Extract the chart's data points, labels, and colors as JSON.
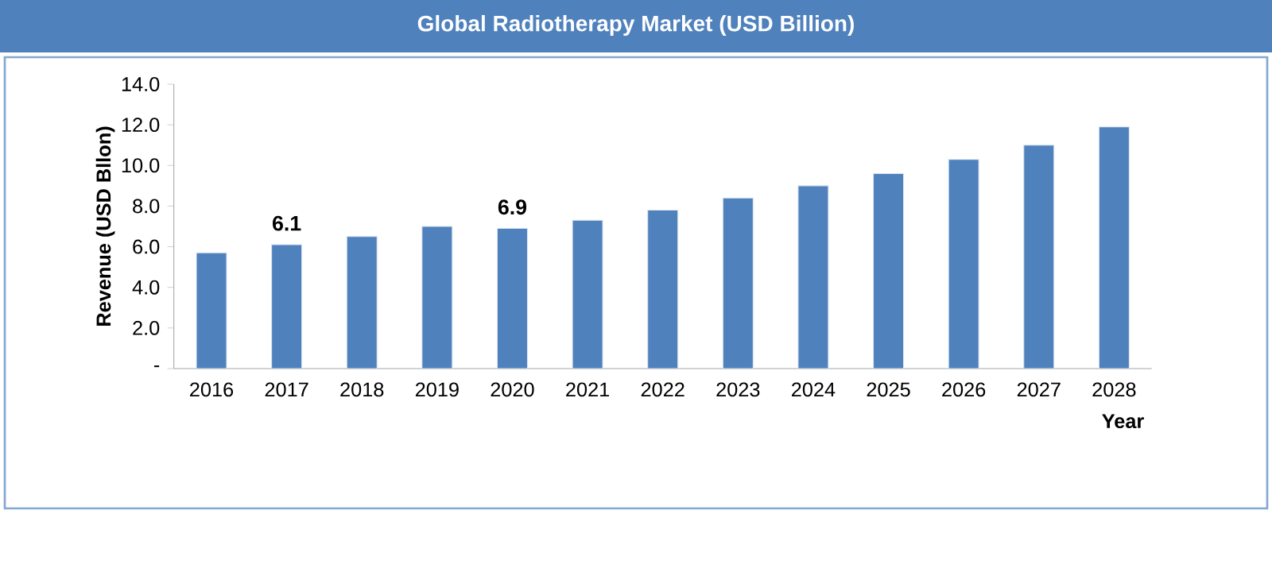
{
  "chart_data": {
    "type": "bar",
    "title": "Global Radiotherapy Market (USD Billion)",
    "xlabel": "Year",
    "ylabel": "Revenue (USD Bllon)",
    "categories": [
      "2016",
      "2017",
      "2018",
      "2019",
      "2020",
      "2021",
      "2022",
      "2023",
      "2024",
      "2025",
      "2026",
      "2027",
      "2028"
    ],
    "values": [
      5.7,
      6.1,
      6.5,
      7.0,
      6.9,
      7.3,
      7.8,
      8.4,
      9.0,
      9.6,
      10.3,
      11.0,
      11.9
    ],
    "value_labels": [
      null,
      "6.1",
      null,
      null,
      "6.9",
      null,
      null,
      null,
      null,
      null,
      null,
      null,
      null
    ],
    "color": "#4f81bd",
    "ylim": [
      0,
      14
    ],
    "yticks": [
      {
        "value": 0,
        "label": "-"
      },
      {
        "value": 2,
        "label": "2.0"
      },
      {
        "value": 4,
        "label": "4.0"
      },
      {
        "value": 6,
        "label": "6.0"
      },
      {
        "value": 8,
        "label": "8.0"
      },
      {
        "value": 10,
        "label": "10.0"
      },
      {
        "value": 12,
        "label": "12.0"
      },
      {
        "value": 14,
        "label": "14.0"
      }
    ]
  }
}
